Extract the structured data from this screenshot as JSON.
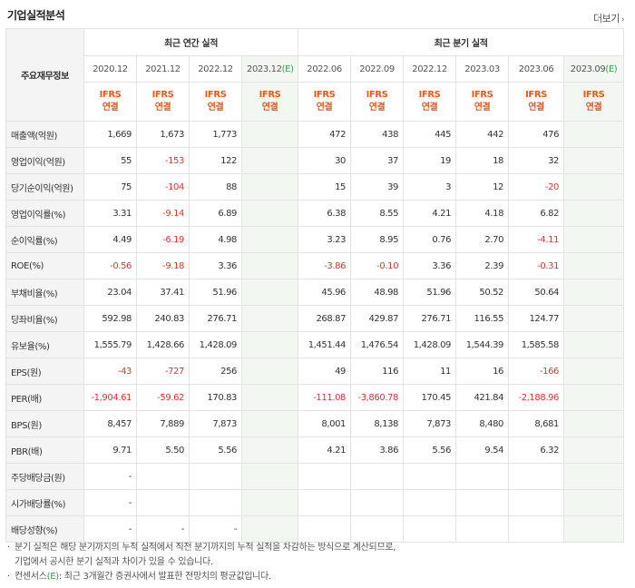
{
  "section_title": "기업실적분석",
  "more_label": "더보기",
  "table": {
    "row_header": "주요재무정보",
    "groups": [
      {
        "label": "최근 연간 실적"
      },
      {
        "label": "최근 분기 실적"
      }
    ],
    "periods": [
      {
        "label": "2020.12",
        "est": false
      },
      {
        "label": "2021.12",
        "est": false
      },
      {
        "label": "2022.12",
        "est": false
      },
      {
        "label": "2023.12",
        "mark": "(E)",
        "est": true
      },
      {
        "label": "2022.06",
        "est": false
      },
      {
        "label": "2022.09",
        "est": false
      },
      {
        "label": "2022.12",
        "est": false
      },
      {
        "label": "2023.03",
        "est": false
      },
      {
        "label": "2023.06",
        "est": false
      },
      {
        "label": "2023.09",
        "mark": "(E)",
        "est": true
      }
    ],
    "ifrs_line1": "IFRS",
    "ifrs_line2": "연결",
    "rows": [
      {
        "label": "매출액(억원)",
        "values": [
          "1,669",
          "1,673",
          "1,773",
          "",
          "472",
          "438",
          "445",
          "442",
          "476",
          ""
        ]
      },
      {
        "label": "영업이익(억원)",
        "values": [
          "55",
          "-153",
          "122",
          "",
          "30",
          "37",
          "19",
          "18",
          "32",
          ""
        ]
      },
      {
        "label": "당기순이익(억원)",
        "values": [
          "75",
          "-104",
          "88",
          "",
          "15",
          "39",
          "3",
          "12",
          "-20",
          ""
        ]
      },
      {
        "label": "영업이익률(%)",
        "values": [
          "3.31",
          "-9.14",
          "6.89",
          "",
          "6.38",
          "8.55",
          "4.21",
          "4.18",
          "6.82",
          ""
        ]
      },
      {
        "label": "순이익률(%)",
        "values": [
          "4.49",
          "-6.19",
          "4.98",
          "",
          "3.23",
          "8.95",
          "0.76",
          "2.70",
          "-4.11",
          ""
        ]
      },
      {
        "label": "ROE(%)",
        "values": [
          "-0.56",
          "-9.18",
          "3.36",
          "",
          "-3.86",
          "-0.10",
          "3.36",
          "2.39",
          "-0.31",
          ""
        ]
      },
      {
        "label": "부채비율(%)",
        "values": [
          "23.04",
          "37.41",
          "51.96",
          "",
          "45.96",
          "48.98",
          "51.96",
          "50.52",
          "50.64",
          ""
        ]
      },
      {
        "label": "당좌비율(%)",
        "values": [
          "592.98",
          "240.83",
          "276.71",
          "",
          "268.87",
          "429.87",
          "276.71",
          "116.55",
          "124.77",
          ""
        ]
      },
      {
        "label": "유보율(%)",
        "values": [
          "1,555.79",
          "1,428.66",
          "1,428.09",
          "",
          "1,451.44",
          "1,476.54",
          "1,428.09",
          "1,544.39",
          "1,585.58",
          ""
        ]
      },
      {
        "label": "EPS(원)",
        "values": [
          "-43",
          "-727",
          "256",
          "",
          "49",
          "116",
          "11",
          "16",
          "-166",
          ""
        ]
      },
      {
        "label": "PER(배)",
        "values": [
          "-1,904.61",
          "-59.62",
          "170.83",
          "",
          "-111.08",
          "-3,860.78",
          "170.45",
          "421.84",
          "-2,188.96",
          ""
        ]
      },
      {
        "label": "BPS(원)",
        "values": [
          "8,457",
          "7,889",
          "7,873",
          "",
          "8,001",
          "8,138",
          "7,873",
          "8,480",
          "8,681",
          ""
        ]
      },
      {
        "label": "PBR(배)",
        "values": [
          "9.71",
          "5.50",
          "5.56",
          "",
          "4.21",
          "3.86",
          "5.56",
          "9.54",
          "6.32",
          ""
        ]
      },
      {
        "label": "주당배당금(원)",
        "values": [
          "-",
          "",
          "",
          "",
          "",
          "",
          "",
          "",
          "",
          ""
        ]
      },
      {
        "label": "시가배당률(%)",
        "values": [
          "-",
          "",
          "",
          "",
          "",
          "",
          "",
          "",
          "",
          ""
        ]
      },
      {
        "label": "배당성향(%)",
        "values": [
          "-",
          "-",
          "-",
          "",
          "",
          "",
          "",
          "",
          "",
          ""
        ]
      }
    ]
  },
  "notes": {
    "line1": "분기 실적은 해당 분기까지의 누적 실적에서 직전 분기까지의 누적 실적을 차감하는 방식으로 계산되므로,",
    "line2": "기업에서 공시한 분기 실적과 차이가 있을 수 있습니다.",
    "line3_pre": "컨센서스",
    "line3_mark": "(E)",
    "line3_post": ": 최근 3개월간 증권사에서 발표한 전망치의 평균값입니다."
  },
  "colors": {
    "negative": "#e03131",
    "ifrs": "#e8591a",
    "estimate_bg": "#f2f8f1",
    "estimate_mark": "#2f9e44"
  }
}
